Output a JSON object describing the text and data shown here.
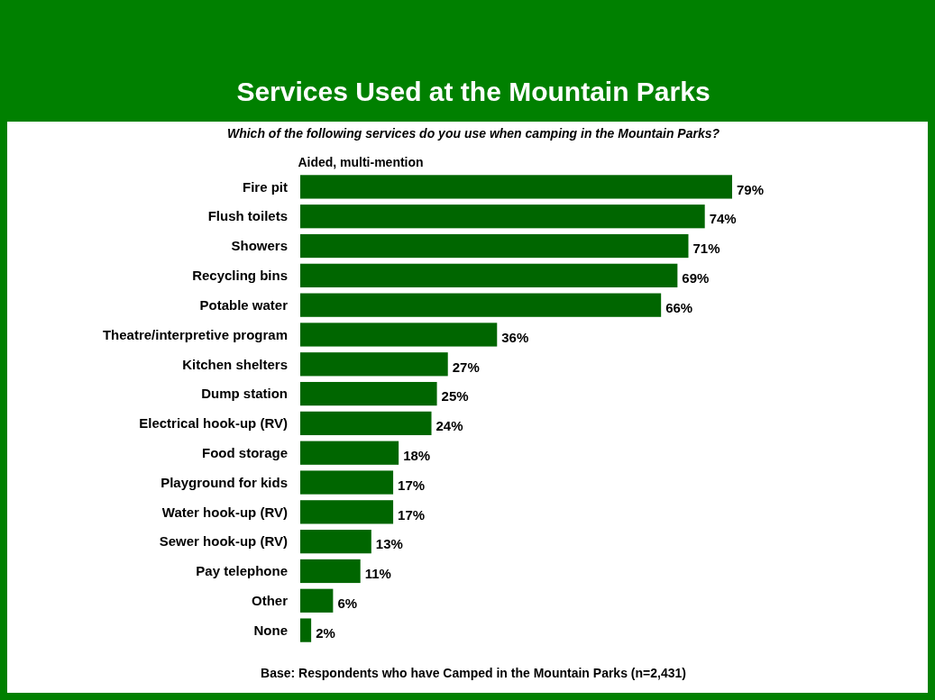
{
  "chart_data": {
    "type": "bar",
    "orientation": "horizontal",
    "title": "Services Used at the Mountain Parks",
    "subtitle": "Which of the following services do you use when camping in the Mountain Parks?",
    "annotations": [
      "Aided, multi-mention",
      "Base: Respondents who have Camped in the Mountain Parks (n=2,431)"
    ],
    "categories": [
      "Fire pit",
      "Flush toilets",
      "Showers",
      "Recycling bins",
      "Potable water",
      "Theatre/interpretive program",
      "Kitchen shelters",
      "Dump station",
      "Electrical hook-up (RV)",
      "Food storage",
      "Playground for kids",
      "Water hook-up (RV)",
      "Sewer hook-up (RV)",
      "Pay telephone",
      "Other",
      "None"
    ],
    "values": [
      79,
      74,
      71,
      69,
      66,
      36,
      27,
      25,
      24,
      18,
      17,
      17,
      13,
      11,
      6,
      2
    ],
    "value_labels": [
      "79%",
      "74%",
      "71%",
      "69%",
      "66%",
      "36%",
      "27%",
      "25%",
      "24%",
      "18%",
      "17%",
      "17%",
      "13%",
      "11%",
      "6%",
      "2%"
    ],
    "color": "#006600"
  }
}
